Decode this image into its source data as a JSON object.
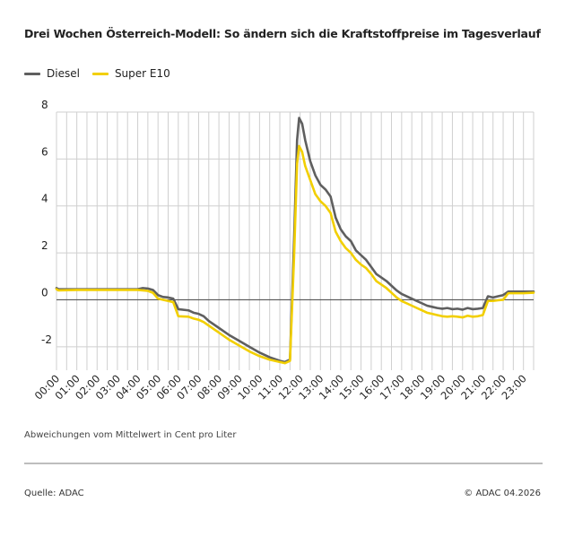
{
  "title": "Drei Wochen Österreich-Modell: So ändern sich die Kraftstoffpreise im Tagesverlauf",
  "note": "Abweichungen vom Mittelwert in Cent pro Liter",
  "source": "Quelle: ADAC",
  "copyright": "© ADAC 04.2026",
  "colors": {
    "diesel": "#5f5f5f",
    "super_e10": "#f2cf00",
    "grid": "#cfcfcf",
    "zero_line": "#555555"
  },
  "chart_data": {
    "type": "line",
    "title": "Drei Wochen Österreich-Modell: So ändern sich die Kraftstoffpreise im Tagesverlauf",
    "xlabel": "",
    "ylabel": "",
    "ylim": [
      -3,
      8
    ],
    "yticks": [
      -2,
      0,
      2,
      4,
      6,
      8
    ],
    "y_tick_labels": [
      "-2",
      "0",
      "2",
      "4",
      "6",
      "8"
    ],
    "x_tick_labels": [
      "00:00",
      "01:00",
      "02:00",
      "03:00",
      "04:00",
      "05:00",
      "06:00",
      "07:00",
      "08:00",
      "09:00",
      "10:00",
      "11:00",
      "12:00",
      "13:00",
      "14:00",
      "15:00",
      "16:00",
      "17:00",
      "18:00",
      "19:00",
      "20:00",
      "21:00",
      "22:00",
      "23:00"
    ],
    "grid": true,
    "legend_position": "top-left",
    "series": [
      {
        "name": "Diesel",
        "points": [
          [
            0,
            0.5
          ],
          [
            0.1,
            0.45
          ],
          [
            1,
            0.45
          ],
          [
            2,
            0.45
          ],
          [
            3,
            0.45
          ],
          [
            4,
            0.45
          ],
          [
            4.25,
            0.5
          ],
          [
            4.5,
            0.48
          ],
          [
            4.75,
            0.42
          ],
          [
            5,
            0.2
          ],
          [
            5.25,
            0.12
          ],
          [
            5.5,
            0.1
          ],
          [
            5.75,
            0.05
          ],
          [
            6,
            -0.4
          ],
          [
            6.5,
            -0.45
          ],
          [
            6.75,
            -0.55
          ],
          [
            7,
            -0.6
          ],
          [
            7.25,
            -0.7
          ],
          [
            7.5,
            -0.9
          ],
          [
            8,
            -1.2
          ],
          [
            8.5,
            -1.5
          ],
          [
            9,
            -1.75
          ],
          [
            9.5,
            -2.0
          ],
          [
            10,
            -2.25
          ],
          [
            10.5,
            -2.45
          ],
          [
            11,
            -2.6
          ],
          [
            11.25,
            -2.65
          ],
          [
            11.5,
            -2.55
          ],
          [
            11.7,
            2.5
          ],
          [
            11.85,
            6.8
          ],
          [
            11.95,
            7.75
          ],
          [
            12.1,
            7.5
          ],
          [
            12.25,
            6.8
          ],
          [
            12.5,
            5.9
          ],
          [
            12.75,
            5.3
          ],
          [
            13,
            4.9
          ],
          [
            13.25,
            4.7
          ],
          [
            13.5,
            4.4
          ],
          [
            13.75,
            3.5
          ],
          [
            14,
            3.0
          ],
          [
            14.25,
            2.7
          ],
          [
            14.5,
            2.5
          ],
          [
            14.75,
            2.1
          ],
          [
            15,
            1.9
          ],
          [
            15.25,
            1.7
          ],
          [
            15.5,
            1.4
          ],
          [
            15.75,
            1.1
          ],
          [
            16,
            0.95
          ],
          [
            16.25,
            0.8
          ],
          [
            16.5,
            0.6
          ],
          [
            16.75,
            0.4
          ],
          [
            17,
            0.25
          ],
          [
            17.25,
            0.15
          ],
          [
            17.5,
            0.05
          ],
          [
            17.75,
            -0.05
          ],
          [
            18,
            -0.15
          ],
          [
            18.25,
            -0.25
          ],
          [
            18.5,
            -0.3
          ],
          [
            18.75,
            -0.35
          ],
          [
            19,
            -0.38
          ],
          [
            19.25,
            -0.35
          ],
          [
            19.5,
            -0.4
          ],
          [
            19.75,
            -0.38
          ],
          [
            20,
            -0.42
          ],
          [
            20.25,
            -0.35
          ],
          [
            20.5,
            -0.4
          ],
          [
            20.75,
            -0.38
          ],
          [
            21,
            -0.35
          ],
          [
            21.25,
            0.15
          ],
          [
            21.5,
            0.1
          ],
          [
            21.75,
            0.15
          ],
          [
            22,
            0.2
          ],
          [
            22.25,
            0.35
          ],
          [
            22.5,
            0.35
          ],
          [
            23,
            0.35
          ],
          [
            23.5,
            0.35
          ]
        ]
      },
      {
        "name": "Super E10",
        "points": [
          [
            0,
            0.45
          ],
          [
            0.1,
            0.4
          ],
          [
            1,
            0.42
          ],
          [
            2,
            0.42
          ],
          [
            3,
            0.42
          ],
          [
            4,
            0.42
          ],
          [
            4.25,
            0.4
          ],
          [
            4.5,
            0.38
          ],
          [
            4.75,
            0.3
          ],
          [
            5,
            0.05
          ],
          [
            5.25,
            0.0
          ],
          [
            5.5,
            -0.05
          ],
          [
            5.75,
            -0.1
          ],
          [
            6,
            -0.7
          ],
          [
            6.5,
            -0.72
          ],
          [
            6.75,
            -0.8
          ],
          [
            7,
            -0.85
          ],
          [
            7.25,
            -0.95
          ],
          [
            7.5,
            -1.1
          ],
          [
            8,
            -1.4
          ],
          [
            8.5,
            -1.7
          ],
          [
            9,
            -1.95
          ],
          [
            9.5,
            -2.2
          ],
          [
            10,
            -2.4
          ],
          [
            10.5,
            -2.55
          ],
          [
            11,
            -2.65
          ],
          [
            11.25,
            -2.7
          ],
          [
            11.5,
            -2.6
          ],
          [
            11.7,
            1.8
          ],
          [
            11.85,
            5.8
          ],
          [
            11.95,
            6.55
          ],
          [
            12.1,
            6.3
          ],
          [
            12.25,
            5.7
          ],
          [
            12.5,
            5.1
          ],
          [
            12.75,
            4.5
          ],
          [
            13,
            4.2
          ],
          [
            13.25,
            4.0
          ],
          [
            13.5,
            3.7
          ],
          [
            13.75,
            2.9
          ],
          [
            14,
            2.5
          ],
          [
            14.25,
            2.2
          ],
          [
            14.5,
            2.0
          ],
          [
            14.75,
            1.7
          ],
          [
            15,
            1.5
          ],
          [
            15.25,
            1.35
          ],
          [
            15.5,
            1.1
          ],
          [
            15.75,
            0.8
          ],
          [
            16,
            0.65
          ],
          [
            16.25,
            0.5
          ],
          [
            16.5,
            0.3
          ],
          [
            16.75,
            0.1
          ],
          [
            17,
            -0.05
          ],
          [
            17.25,
            -0.15
          ],
          [
            17.5,
            -0.25
          ],
          [
            17.75,
            -0.35
          ],
          [
            18,
            -0.45
          ],
          [
            18.25,
            -0.55
          ],
          [
            18.5,
            -0.6
          ],
          [
            18.75,
            -0.65
          ],
          [
            19,
            -0.7
          ],
          [
            19.25,
            -0.72
          ],
          [
            19.5,
            -0.7
          ],
          [
            19.75,
            -0.72
          ],
          [
            20,
            -0.75
          ],
          [
            20.25,
            -0.68
          ],
          [
            20.5,
            -0.72
          ],
          [
            20.75,
            -0.7
          ],
          [
            21,
            -0.65
          ],
          [
            21.25,
            -0.05
          ],
          [
            21.5,
            -0.05
          ],
          [
            21.75,
            -0.02
          ],
          [
            22,
            0.0
          ],
          [
            22.25,
            0.28
          ],
          [
            22.5,
            0.28
          ],
          [
            23,
            0.28
          ],
          [
            23.5,
            0.3
          ]
        ]
      }
    ]
  }
}
